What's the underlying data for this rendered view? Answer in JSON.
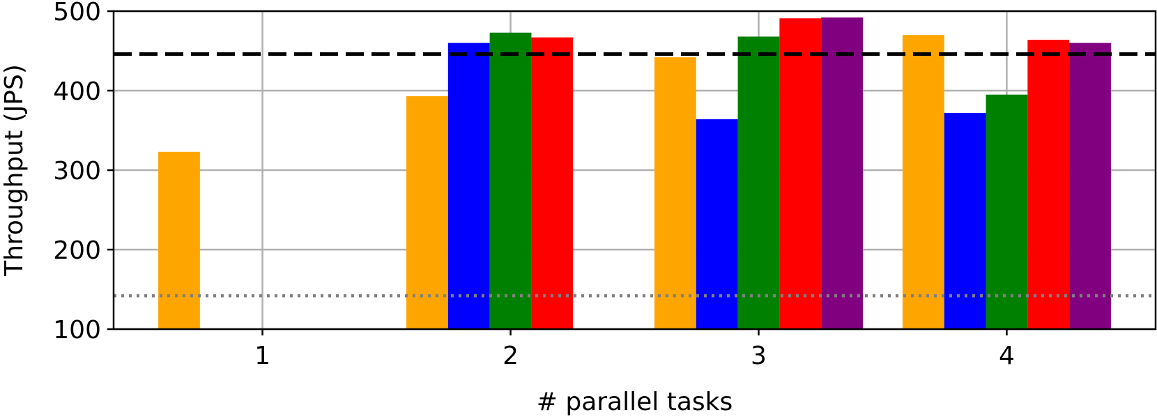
{
  "chart_data": {
    "type": "bar",
    "xlabel": "# parallel tasks",
    "ylabel": "Throughput (JPS)",
    "categories": [
      "1",
      "2",
      "3",
      "4"
    ],
    "ylim": [
      100,
      500
    ],
    "yticks": [
      100,
      200,
      300,
      400,
      500
    ],
    "grid": true,
    "legend": "none",
    "series": [
      {
        "color": "#ffa500",
        "values": [
          323,
          393,
          442,
          470
        ]
      },
      {
        "color": "#0000ff",
        "values": [
          null,
          460,
          364,
          372
        ]
      },
      {
        "color": "#008000",
        "values": [
          null,
          473,
          468,
          395
        ]
      },
      {
        "color": "#ff0000",
        "values": [
          null,
          467,
          491,
          464
        ]
      },
      {
        "color": "#800080",
        "values": [
          null,
          null,
          492,
          460
        ]
      }
    ],
    "reference_lines": [
      {
        "style": "dashed",
        "color": "#000000",
        "value": 446
      },
      {
        "style": "dotted",
        "color": "#808080",
        "value": 142
      }
    ]
  }
}
